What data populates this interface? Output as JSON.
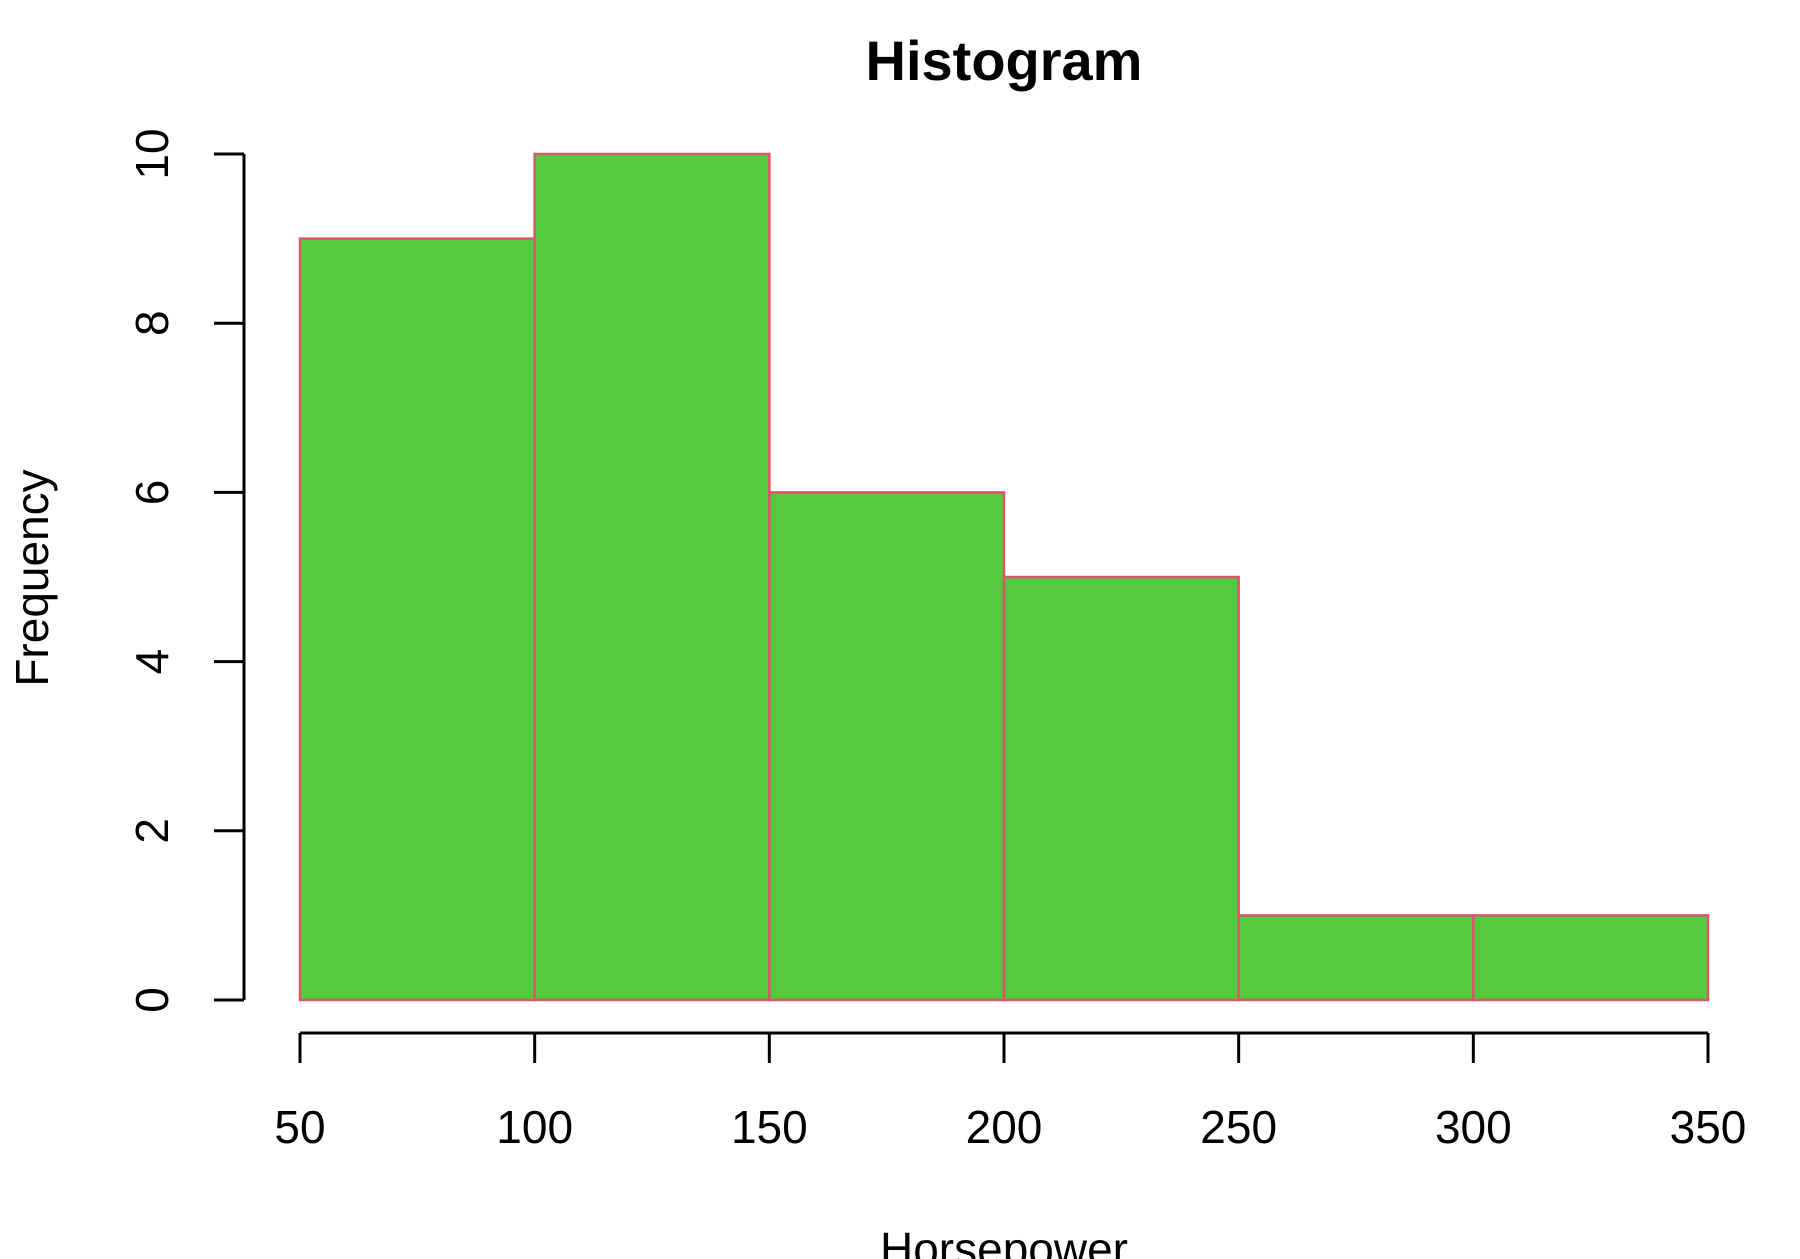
{
  "chart_data": {
    "type": "bar",
    "title": "Histogram",
    "xlabel": "Horsepower",
    "ylabel": "Frequency",
    "bins": [
      {
        "start": 50,
        "end": 100,
        "value": 9
      },
      {
        "start": 100,
        "end": 150,
        "value": 10
      },
      {
        "start": 150,
        "end": 200,
        "value": 6
      },
      {
        "start": 200,
        "end": 250,
        "value": 5
      },
      {
        "start": 250,
        "end": 300,
        "value": 1
      },
      {
        "start": 300,
        "end": 350,
        "value": 1
      }
    ],
    "xlim": [
      50,
      350
    ],
    "ylim": [
      0,
      10
    ],
    "x_ticks": [
      50,
      100,
      150,
      200,
      250,
      300,
      350
    ],
    "x_tick_labels": [
      "50",
      "100",
      "150",
      "200",
      "250",
      "300",
      "350"
    ],
    "y_ticks": [
      0,
      2,
      4,
      6,
      8,
      10
    ],
    "y_tick_labels": [
      "0",
      "2",
      "4",
      "6",
      "8",
      "10"
    ],
    "grid": false,
    "legend": "none",
    "colors": {
      "bar_fill": "#54CB3F",
      "bar_border": "#DF536B"
    }
  }
}
